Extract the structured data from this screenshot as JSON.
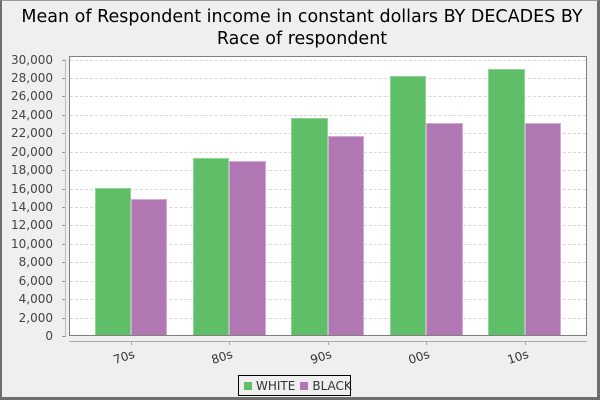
{
  "chart_data": {
    "type": "bar",
    "title": "Mean of Respondent income in constant dollars BY DECADES BY Race of respondent",
    "title_lines": [
      "Mean of Respondent income in constant dollars BY DECADES BY",
      "Race of respondent"
    ],
    "xlabel": "",
    "ylabel": "",
    "categories": [
      "70s",
      "80s",
      "90s",
      "00s",
      "10s"
    ],
    "series": [
      {
        "name": "WHITE",
        "color": "#5fbe68",
        "values": [
          16050,
          19270,
          23630,
          28180,
          28870
        ]
      },
      {
        "name": "BLACK",
        "color": "#b077b3",
        "values": [
          14780,
          18910,
          21630,
          23090,
          23020
        ]
      }
    ],
    "ylim": [
      0,
      30000
    ],
    "yticks": [
      0,
      2000,
      4000,
      6000,
      8000,
      10000,
      12000,
      14000,
      16000,
      18000,
      20000,
      22000,
      24000,
      26000,
      28000,
      30000
    ],
    "ytick_labels": [
      "0",
      "2,000",
      "4,000",
      "6,000",
      "8,000",
      "10,000",
      "12,000",
      "14,000",
      "16,000",
      "18,000",
      "20,000",
      "22,000",
      "24,000",
      "26,000",
      "28,000",
      "30,000"
    ],
    "grid": true,
    "legend_position": "bottom"
  }
}
